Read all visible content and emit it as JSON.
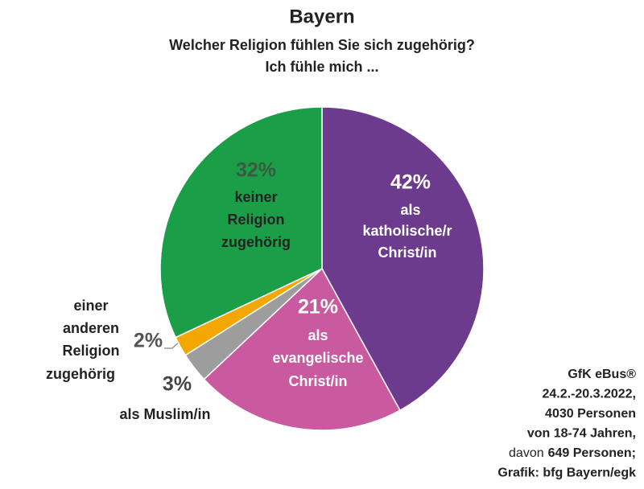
{
  "chart_data": {
    "type": "pie",
    "title": "Bayern",
    "subtitle": [
      "Welcher Religion fühlen Sie sich zugehörig?",
      "Ich fühle mich ..."
    ],
    "categories": [
      [
        "als",
        "katholische/r",
        "Christ/in"
      ],
      [
        "als",
        "evangelische",
        "Christ/in"
      ],
      [
        "als Muslim/in"
      ],
      [
        "einer",
        "anderen",
        "Religion",
        "zugehörig"
      ],
      [
        "keiner",
        "Religion",
        "zugehörig"
      ]
    ],
    "values": [
      42,
      21,
      3,
      2,
      32
    ],
    "value_labels": [
      "42%",
      "21%",
      "3%",
      "2%",
      "32%"
    ],
    "colors": [
      "#6d3b8e",
      "#c95a9f",
      "#9d9d9d",
      "#f4a700",
      "#1a9e48"
    ],
    "note": [
      "GfK eBus®",
      "24.2.-20.3.2022,",
      "4030 Personen",
      "von 18-74 Jahren,",
      [
        "davon",
        "649 Personen;"
      ],
      "Grafik: bfg Bayern/egk"
    ]
  }
}
